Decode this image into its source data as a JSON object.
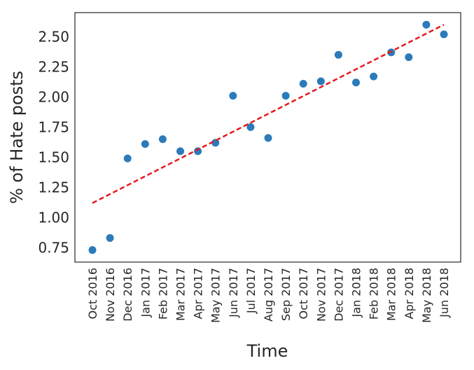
{
  "chart_data": {
    "type": "scatter",
    "xlabel": "Time",
    "ylabel": "% of Hate posts",
    "categories": [
      "Oct 2016",
      "Nov 2016",
      "Dec 2016",
      "Jan 2017",
      "Feb 2017",
      "Mar 2017",
      "Apr 2017",
      "May 2017",
      "Jun 2017",
      "Jul 2017",
      "Aug 2017",
      "Sep 2017",
      "Oct 2017",
      "Nov 2017",
      "Dec 2017",
      "Jan 2018",
      "Feb 2018",
      "Mar 2018",
      "Apr 2018",
      "May 2018",
      "Jun 2018"
    ],
    "values": [
      0.73,
      0.83,
      1.49,
      1.61,
      1.65,
      1.55,
      1.55,
      1.62,
      2.01,
      1.75,
      1.66,
      2.01,
      2.11,
      2.13,
      2.35,
      2.12,
      2.17,
      2.37,
      2.33,
      2.6,
      2.52
    ],
    "trend_line": {
      "start": 1.12,
      "end": 2.6,
      "style": "dashed",
      "color": "#e41a1c"
    },
    "yticks": [
      "0.75",
      "1.00",
      "1.25",
      "1.50",
      "1.75",
      "2.00",
      "2.25",
      "2.50"
    ],
    "ylim": [
      0.63,
      2.7
    ],
    "grid": false,
    "point_color": "#2b7bba"
  }
}
